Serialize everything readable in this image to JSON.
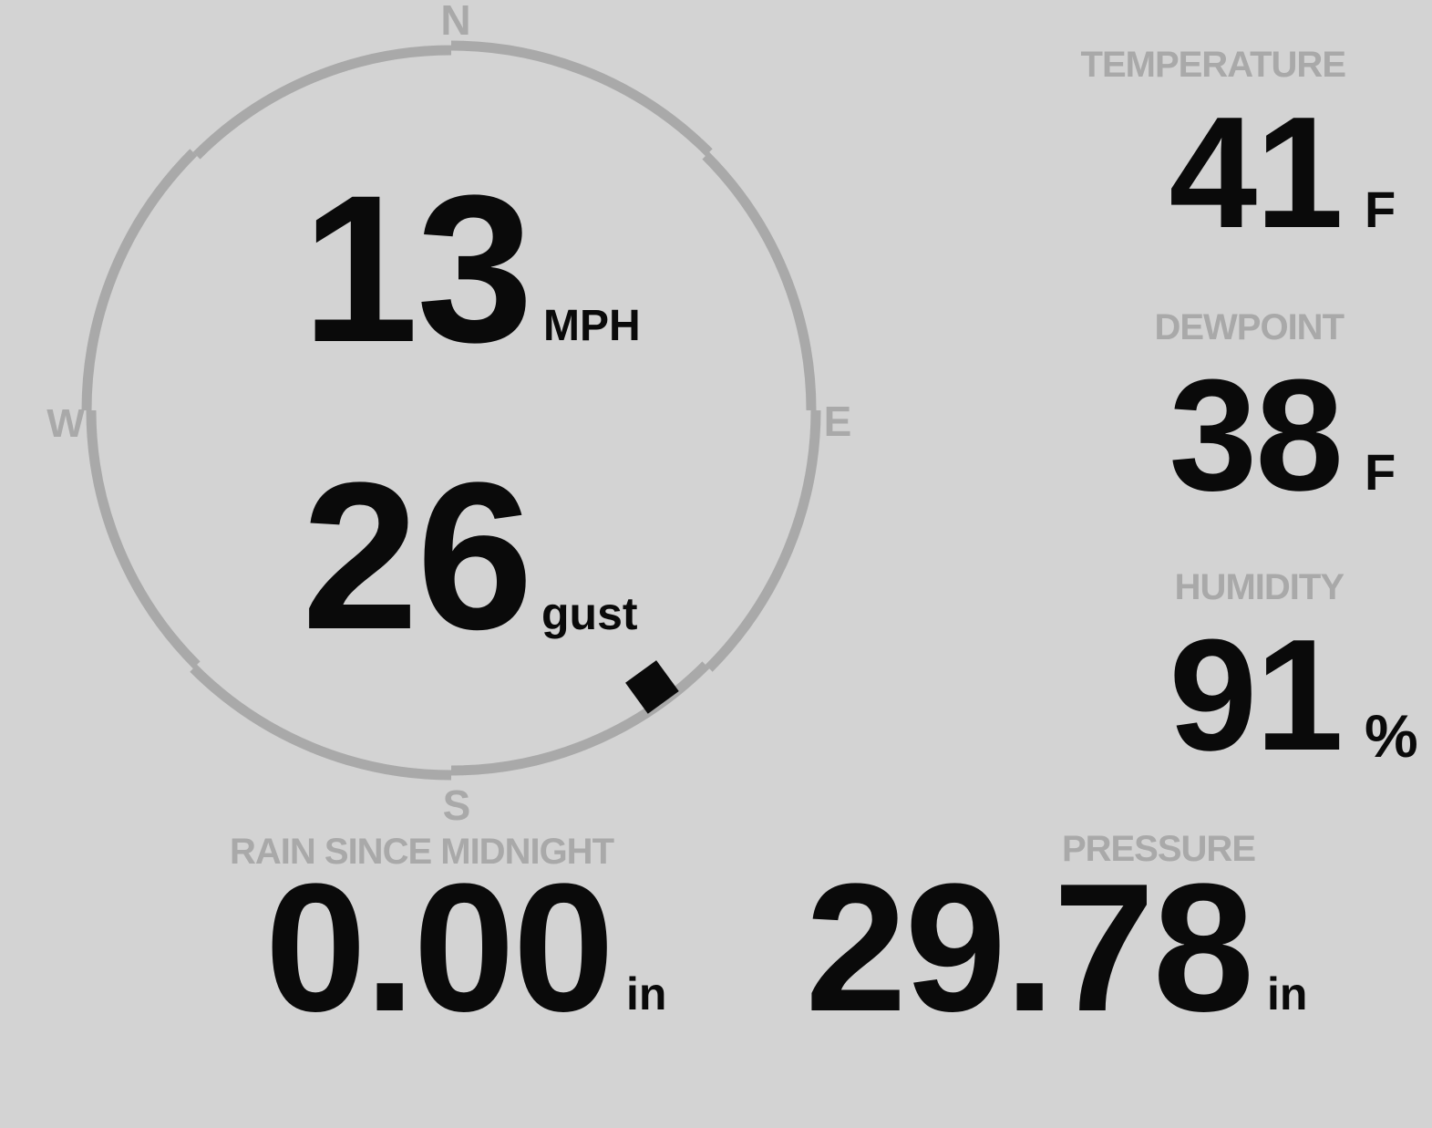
{
  "theme": {
    "background_color": "#d3d3d3",
    "muted_color": "#a9a9a9",
    "text_color": "#0a0a0a"
  },
  "wind": {
    "speed": "13",
    "speed_unit": "MPH",
    "gust": "26",
    "gust_unit": "gust",
    "direction_degrees": 144,
    "compass": {
      "north": "N",
      "east": "E",
      "south": "S",
      "west": "W"
    }
  },
  "metrics": {
    "temperature": {
      "label": "TEMPERATURE",
      "value": "41",
      "unit": "F"
    },
    "dewpoint": {
      "label": "DEWPOINT",
      "value": "38",
      "unit": "F"
    },
    "humidity": {
      "label": "HUMIDITY",
      "value": "91",
      "unit": "%"
    },
    "rain": {
      "label": "RAIN SINCE MIDNIGHT",
      "value": "0.00",
      "unit": "in"
    },
    "pressure": {
      "label": "PRESSURE",
      "value": "29.78",
      "unit": "in"
    }
  }
}
